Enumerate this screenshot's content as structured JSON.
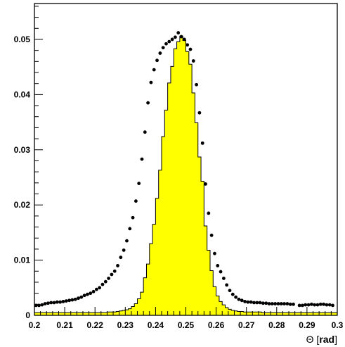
{
  "chart_data": {
    "type": "histogram",
    "title": "",
    "xlabel": {
      "symbol": "Θ",
      "open": "[",
      "unit": "rad",
      "close": "]"
    },
    "ylabel": "",
    "xlim": [
      0.2,
      0.3
    ],
    "ylim": [
      0,
      0.0565
    ],
    "x_ticks": [
      "0.2",
      "0.21",
      "0.22",
      "0.23",
      "0.24",
      "0.25",
      "0.26",
      "0.27",
      "0.28",
      "0.29",
      "0.3"
    ],
    "y_ticks": [
      "0",
      "0.01",
      "0.02",
      "0.03",
      "0.04",
      "0.05"
    ],
    "grid": false,
    "bin_width": 0.001,
    "histogram": {
      "fill_color": "#ffff00",
      "edge_color": "#000000",
      "bin_start": 0.2,
      "values": [
        0.0005,
        0.0005,
        0.0005,
        0.0005,
        0.0005,
        0.0005,
        0.0005,
        0.0005,
        0.0005,
        0.0005,
        0.0005,
        0.0005,
        0.0005,
        0.0005,
        0.0005,
        0.0005,
        0.0005,
        0.0005,
        0.0005,
        0.0005,
        0.0005,
        0.0005,
        0.0005,
        0.0005,
        0.0006,
        0.0006,
        0.0006,
        0.0007,
        0.0008,
        0.0009,
        0.001,
        0.0012,
        0.0016,
        0.0021,
        0.003,
        0.0042,
        0.0068,
        0.0093,
        0.013,
        0.0165,
        0.0212,
        0.0263,
        0.0324,
        0.0372,
        0.0421,
        0.0451,
        0.0483,
        0.0496,
        0.0506,
        0.0498,
        0.0478,
        0.0455,
        0.0403,
        0.0349,
        0.0287,
        0.0243,
        0.0162,
        0.0118,
        0.0081,
        0.0052,
        0.0035,
        0.0025,
        0.0019,
        0.0014,
        0.0011,
        0.0009,
        0.0008,
        0.0007,
        0.0007,
        0.0006,
        0.0006,
        0.0006,
        0.0006,
        0.0006,
        0.0006,
        0.0005,
        0.0005,
        0.0005,
        0.0005,
        0.0005,
        0.0005,
        0.0005,
        0.0005,
        0.0005,
        0.0005,
        0.0005,
        0.0005,
        0.0005,
        0.0005,
        0.0005,
        0.0005,
        0.0005,
        0.0005,
        0.0005,
        0.0005,
        0.0005,
        0.0005,
        0.0005,
        0.0005,
        0.0005
      ]
    },
    "markers": {
      "color": "#000000",
      "x": [
        0.2005,
        0.2015,
        0.2025,
        0.2035,
        0.2045,
        0.2055,
        0.2065,
        0.2075,
        0.2085,
        0.2095,
        0.2105,
        0.2115,
        0.2125,
        0.2135,
        0.2145,
        0.2155,
        0.2165,
        0.2175,
        0.2185,
        0.2195,
        0.2205,
        0.2215,
        0.2225,
        0.2235,
        0.2245,
        0.2255,
        0.2265,
        0.2275,
        0.2285,
        0.2295,
        0.2305,
        0.2315,
        0.2325,
        0.2335,
        0.2345,
        0.2355,
        0.2365,
        0.2375,
        0.2385,
        0.2395,
        0.2405,
        0.2415,
        0.2425,
        0.2435,
        0.2445,
        0.2455,
        0.2465,
        0.2475,
        0.2485,
        0.2495,
        0.2505,
        0.2515,
        0.2525,
        0.2535,
        0.2545,
        0.2555,
        0.2565,
        0.2575,
        0.2585,
        0.2595,
        0.2605,
        0.2615,
        0.2625,
        0.2635,
        0.2645,
        0.2655,
        0.2665,
        0.2675,
        0.2685,
        0.2695,
        0.2705,
        0.2715,
        0.2725,
        0.2735,
        0.2745,
        0.2755,
        0.2765,
        0.2775,
        0.2785,
        0.2795,
        0.2805,
        0.2815,
        0.2825,
        0.2835,
        0.2845,
        0.2855,
        0.2875,
        0.2885,
        0.2895,
        0.2905,
        0.2915,
        0.2925,
        0.2935,
        0.2945,
        0.2955,
        0.2965,
        0.2975,
        0.2985
      ],
      "y": [
        0.0018,
        0.0018,
        0.0019,
        0.0021,
        0.0022,
        0.0023,
        0.0023,
        0.0024,
        0.0024,
        0.0025,
        0.0026,
        0.0027,
        0.0028,
        0.0029,
        0.0031,
        0.0033,
        0.0036,
        0.0038,
        0.004,
        0.0043,
        0.0047,
        0.005,
        0.0056,
        0.0061,
        0.0067,
        0.0074,
        0.008,
        0.009,
        0.0105,
        0.0118,
        0.0135,
        0.0157,
        0.0177,
        0.0207,
        0.0239,
        0.0283,
        0.0332,
        0.0385,
        0.0422,
        0.0445,
        0.0462,
        0.0475,
        0.0485,
        0.0492,
        0.0496,
        0.05,
        0.0504,
        0.0512,
        0.0505,
        0.05,
        0.049,
        0.0482,
        0.0461,
        0.0418,
        0.0367,
        0.0312,
        0.0238,
        0.0185,
        0.0145,
        0.0112,
        0.009,
        0.0079,
        0.0067,
        0.0055,
        0.0045,
        0.0038,
        0.0033,
        0.0029,
        0.0027,
        0.0025,
        0.0024,
        0.0024,
        0.0023,
        0.0023,
        0.0023,
        0.0022,
        0.0022,
        0.0021,
        0.0021,
        0.0021,
        0.0021,
        0.0021,
        0.0021,
        0.0021,
        0.002,
        0.002,
        0.0018,
        0.0018,
        0.0019,
        0.0019,
        0.002,
        0.0019,
        0.0019,
        0.002,
        0.002,
        0.0019,
        0.0019,
        0.0018
      ]
    }
  }
}
